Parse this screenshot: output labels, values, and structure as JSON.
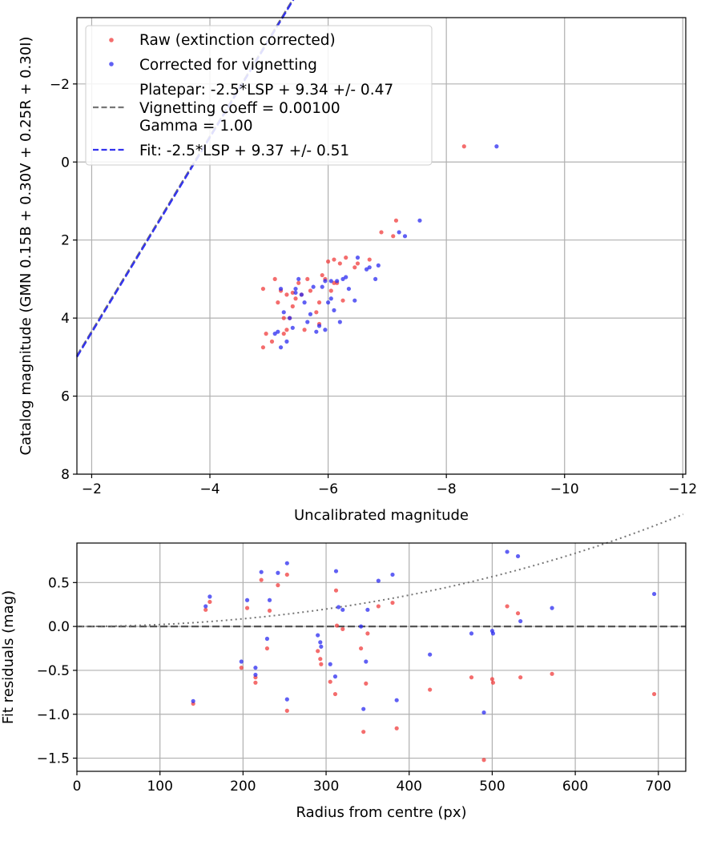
{
  "chart_data": [
    {
      "type": "scatter",
      "title": "",
      "xlabel": "Uncalibrated magnitude",
      "ylabel": "Catalog magnitude (GMN 0.15B + 0.30V + 0.25R + 0.30I)",
      "xlim": [
        -1.75,
        -12.05
      ],
      "ylim": [
        8.0,
        -3.7
      ],
      "xticks": [
        -2,
        -4,
        -6,
        -8,
        -10,
        -12
      ],
      "yticks": [
        -2,
        0,
        2,
        4,
        6,
        8
      ],
      "xtick_labels": [
        "−2",
        "−4",
        "−6",
        "−8",
        "−10",
        "−12"
      ],
      "ytick_labels": [
        "−2",
        "0",
        "2",
        "4",
        "6",
        "8"
      ],
      "grid": true,
      "legend_position": "top-left",
      "legend": {
        "raw": "Raw (extinction corrected)",
        "corrected": "Corrected for vignetting",
        "platepar_line1": "Platepar: -2.5*LSP + 9.34 +/- 0.47",
        "platepar_line2": "Vignetting coeff = 0.00100",
        "platepar_line3": "Gamma = 1.00",
        "fit": "Fit: -2.5*LSP + 9.37 +/- 0.51"
      },
      "colors": {
        "raw": "#f03c3c",
        "corrected": "#2b2bf0",
        "platepar": "#777777",
        "fit": "#3333ee"
      },
      "lines": {
        "platepar": {
          "slope": 2.5,
          "intercept": 9.34
        },
        "fit": {
          "slope": 2.5,
          "intercept": 9.37
        }
      },
      "series": [
        {
          "name": "Raw (extinction corrected)",
          "x": [
            -8.3,
            -7.15,
            -7.1,
            -6.9,
            -6.7,
            -6.5,
            -6.45,
            -6.3,
            -6.25,
            -6.2,
            -6.15,
            -6.1,
            -6.05,
            -6.0,
            -5.95,
            -5.9,
            -5.85,
            -5.8,
            -5.7,
            -5.65,
            -5.6,
            -5.55,
            -5.5,
            -5.45,
            -5.4,
            -5.35,
            -5.3,
            -5.25,
            -5.2,
            -5.15,
            -5.1,
            -5.05,
            -4.95,
            -4.9,
            -4.9,
            -5.3,
            -5.25,
            -5.85,
            -6.1,
            -5.4
          ],
          "y": [
            -0.4,
            1.5,
            1.9,
            1.8,
            2.5,
            2.6,
            2.7,
            2.45,
            3.55,
            2.6,
            3.1,
            2.5,
            3.3,
            2.55,
            3.0,
            2.9,
            3.6,
            3.85,
            3.3,
            3.0,
            4.3,
            3.4,
            3.1,
            3.5,
            3.7,
            4.0,
            4.3,
            4.4,
            3.3,
            3.6,
            3.0,
            4.6,
            4.4,
            3.25,
            4.75,
            3.4,
            4.0,
            4.15,
            3.1,
            3.35
          ]
        },
        {
          "name": "Corrected for vignetting",
          "x": [
            -8.85,
            -7.55,
            -7.3,
            -7.2,
            -6.85,
            -6.8,
            -6.7,
            -6.65,
            -6.5,
            -6.45,
            -6.35,
            -6.3,
            -6.2,
            -6.15,
            -6.1,
            -6.05,
            -6.0,
            -5.95,
            -5.9,
            -5.85,
            -5.8,
            -5.75,
            -5.7,
            -5.65,
            -5.6,
            -5.55,
            -5.5,
            -5.45,
            -5.4,
            -5.35,
            -5.3,
            -5.25,
            -5.2,
            -5.2,
            -5.15,
            -5.1,
            -5.45,
            -5.95,
            -6.05,
            -6.25
          ],
          "y": [
            -0.4,
            1.5,
            1.9,
            1.8,
            2.65,
            3.0,
            2.7,
            2.75,
            2.45,
            3.55,
            3.25,
            2.95,
            4.1,
            3.05,
            3.8,
            3.5,
            3.6,
            3.05,
            3.2,
            4.2,
            4.35,
            3.2,
            3.9,
            4.1,
            3.6,
            3.4,
            3.0,
            3.35,
            4.25,
            4.0,
            4.6,
            3.85,
            4.75,
            3.25,
            4.35,
            4.4,
            3.25,
            4.3,
            3.05,
            3.0
          ]
        }
      ]
    },
    {
      "type": "scatter",
      "title": "",
      "xlabel": "Radius from centre (px)",
      "ylabel": "Fit residuals (mag)",
      "xlim": [
        0,
        733
      ],
      "ylim": [
        -1.65,
        0.95
      ],
      "xticks": [
        0,
        100,
        200,
        300,
        400,
        500,
        600,
        700
      ],
      "yticks": [
        -1.5,
        -1.0,
        -0.5,
        0.0,
        0.5
      ],
      "xtick_labels": [
        "0",
        "100",
        "200",
        "300",
        "400",
        "500",
        "600",
        "700"
      ],
      "ytick_labels": [
        "−1.5",
        "−1.0",
        "−0.5",
        "0.0",
        "0.5"
      ],
      "grid": true,
      "zero_line": 0.0,
      "vignetting_curve": {
        "coeff": 0.001,
        "note": "dotted model curve of expected vignetting loss"
      },
      "series": [
        {
          "name": "Raw (extinction corrected)",
          "x": [
            140,
            155,
            160,
            198,
            205,
            215,
            215,
            222,
            229,
            232,
            242,
            253,
            253,
            290,
            293,
            294,
            305,
            311,
            312,
            313,
            320,
            342,
            345,
            348,
            350,
            363,
            380,
            385,
            425,
            475,
            490,
            500,
            501,
            518,
            531,
            534,
            572,
            695
          ],
          "y": [
            -0.88,
            0.19,
            0.28,
            -0.47,
            0.21,
            -0.58,
            -0.64,
            0.53,
            -0.25,
            0.18,
            0.47,
            0.59,
            -0.96,
            -0.28,
            -0.37,
            -0.43,
            -0.63,
            -0.77,
            0.41,
            0.01,
            -0.03,
            -0.25,
            -1.2,
            -0.65,
            -0.08,
            0.23,
            0.27,
            -1.16,
            -0.72,
            -0.58,
            -1.52,
            -0.6,
            -0.64,
            0.23,
            0.15,
            -0.58,
            -0.54,
            -0.77
          ]
        },
        {
          "name": "Corrected for vignetting",
          "x": [
            140,
            155,
            160,
            198,
            205,
            215,
            215,
            222,
            229,
            232,
            242,
            253,
            253,
            290,
            293,
            294,
            305,
            311,
            312,
            315,
            320,
            342,
            345,
            348,
            350,
            363,
            380,
            385,
            425,
            475,
            490,
            500,
            501,
            518,
            531,
            534,
            572,
            695
          ],
          "y": [
            -0.85,
            0.23,
            0.34,
            -0.4,
            0.3,
            -0.47,
            -0.55,
            0.62,
            -0.14,
            0.3,
            0.61,
            0.72,
            -0.83,
            -0.1,
            -0.18,
            -0.23,
            -0.43,
            -0.57,
            0.63,
            0.22,
            0.19,
            0.0,
            -0.94,
            -0.4,
            0.19,
            0.52,
            0.59,
            -0.84,
            -0.32,
            -0.08,
            -0.98,
            -0.05,
            -0.08,
            0.85,
            0.8,
            0.06,
            0.21,
            0.37
          ]
        }
      ]
    }
  ]
}
